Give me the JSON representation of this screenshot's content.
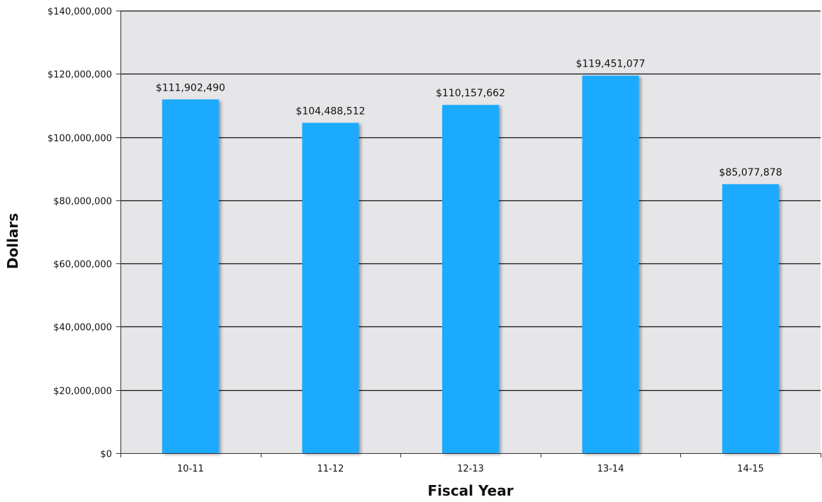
{
  "chart_data": {
    "type": "bar",
    "title": "",
    "xlabel": "Fiscal Year",
    "ylabel": "Dollars",
    "categories": [
      "10-11",
      "11-12",
      "12-13",
      "13-14",
      "14-15"
    ],
    "values": [
      111902490,
      104488512,
      110157662,
      119451077,
      85077878
    ],
    "value_labels": [
      "$111,902,490",
      "$104,488,512",
      "$110,157,662",
      "$119,451,077",
      "$85,077,878"
    ],
    "ylim": [
      0,
      140000000
    ],
    "yticks": [
      0,
      20000000,
      40000000,
      60000000,
      80000000,
      100000000,
      120000000,
      140000000
    ],
    "ytick_labels": [
      "$0",
      "$20,000,000",
      "$40,000,000",
      "$60,000,000",
      "$80,000,000",
      "$100,000,000",
      "$120,000,000",
      "$140,000,000"
    ],
    "grid": true,
    "legend": "none",
    "colors": {
      "bar": "#1eaaff",
      "plot_background": "#e6e6e9",
      "gridline": "#111111"
    }
  }
}
